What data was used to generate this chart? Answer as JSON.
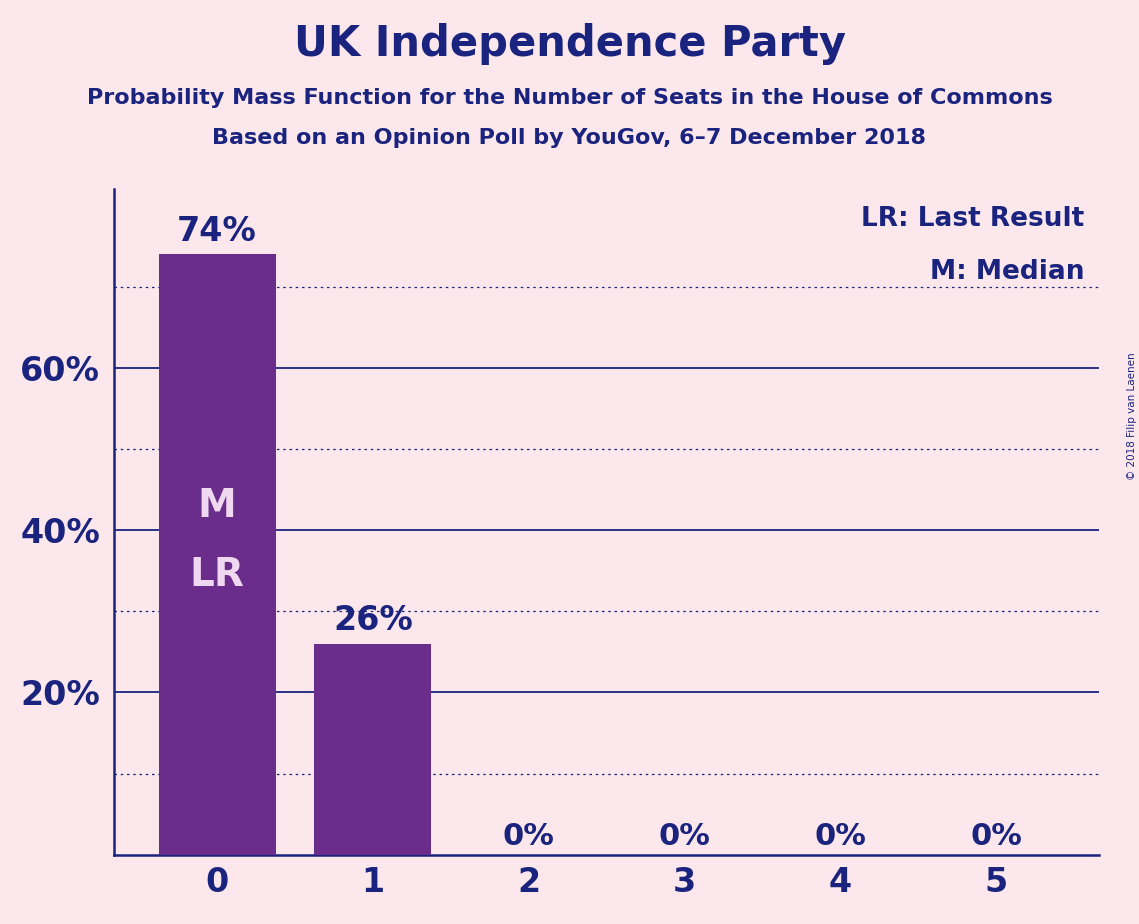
{
  "title": "UK Independence Party",
  "subtitle1": "Probability Mass Function for the Number of Seats in the House of Commons",
  "subtitle2": "Based on an Opinion Poll by YouGov, 6–7 December 2018",
  "copyright": "© 2018 Filip van Laenen",
  "categories": [
    0,
    1,
    2,
    3,
    4,
    5
  ],
  "values": [
    0.74,
    0.26,
    0.0,
    0.0,
    0.0,
    0.0
  ],
  "bar_color": "#6b2d8b",
  "background_color": "#fce8ec",
  "title_color": "#1a237e",
  "text_color": "#1a237e",
  "bar_label_color_outside": "#1a237e",
  "bar_label_color_inside": "#f0d8f0",
  "ylim": [
    0,
    0.82
  ],
  "yticks": [
    0.0,
    0.1,
    0.2,
    0.3,
    0.4,
    0.5,
    0.6,
    0.7,
    0.8
  ],
  "ytick_labels_shown": [
    0.2,
    0.4,
    0.6
  ],
  "solid_gridlines": [
    0.2,
    0.4,
    0.6
  ],
  "dotted_gridlines": [
    0.1,
    0.3,
    0.5,
    0.7
  ],
  "median_bar": 0,
  "last_result_bar": 0,
  "legend_lr": "LR: Last Result",
  "legend_m": "M: Median",
  "title_fontsize": 30,
  "subtitle_fontsize": 16,
  "ytick_fontsize": 24,
  "xtick_fontsize": 24,
  "bar_label_fontsize_large": 24,
  "bar_label_fontsize_zero": 22,
  "inner_label_fontsize": 28,
  "legend_fontsize": 19
}
